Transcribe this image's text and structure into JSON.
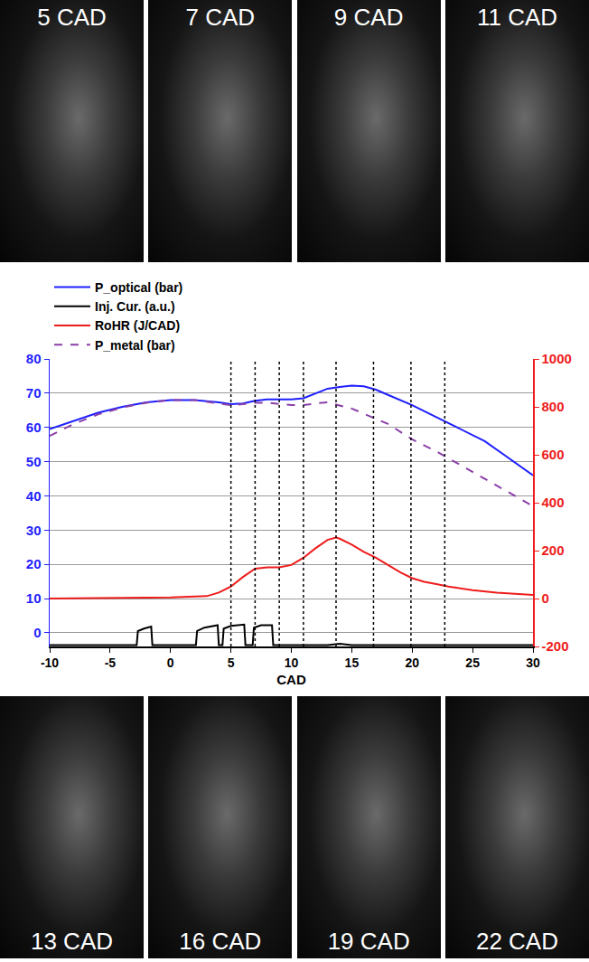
{
  "chart_data": {
    "type": "line",
    "x_label": "CAD",
    "xlim": [
      -10,
      30
    ],
    "xticks": [
      -10,
      -5,
      0,
      5,
      10,
      15,
      20,
      25,
      30
    ],
    "ylim": [
      -4,
      80
    ],
    "yticks": [
      0,
      10,
      20,
      30,
      40,
      50,
      60,
      70,
      80
    ],
    "y2lim": [
      -200,
      1000
    ],
    "y2ticks": [
      -200,
      0,
      200,
      400,
      600,
      800,
      1000
    ],
    "grid": true,
    "legend": "upper left",
    "series": [
      {
        "name": "P_optical (bar)",
        "color": "#1f1fff",
        "line_style": "solid",
        "x": [
          -10,
          -8,
          -6,
          -4,
          -2,
          0,
          2,
          4,
          5,
          6,
          7,
          8,
          9,
          10,
          11,
          12,
          13,
          14,
          15,
          16,
          17,
          18,
          20,
          22,
          24,
          26,
          28,
          30
        ],
        "values": [
          59.5,
          62,
          64.3,
          66,
          67.3,
          68,
          68,
          67.3,
          66.8,
          67,
          67.8,
          68.2,
          68.2,
          68.2,
          68.5,
          70,
          71.3,
          71.8,
          72.2,
          72,
          71,
          69.5,
          66.5,
          63,
          59.5,
          56,
          51,
          46
        ]
      },
      {
        "name": "Inj. Cur. (a.u.)",
        "color": "#000000",
        "line_style": "solid",
        "x": [
          -10,
          -2.8,
          -2.7,
          -2.2,
          -1.6,
          -1.5,
          2.1,
          2.2,
          2.8,
          3.9,
          4.0,
          4.3,
          4.4,
          5.0,
          6.1,
          6.2,
          6.8,
          6.9,
          7.5,
          8.4,
          8.5,
          13,
          14,
          15,
          30
        ],
        "values": [
          -3.6,
          -3.6,
          0.5,
          1.2,
          1.8,
          -3.6,
          -3.6,
          0.5,
          1.5,
          2.2,
          -3.6,
          -3.6,
          1.2,
          2.0,
          2.4,
          -3.6,
          -3.6,
          1.5,
          2.2,
          2.2,
          -3.6,
          -3.6,
          -3.2,
          -3.6,
          -3.6
        ]
      },
      {
        "name": "RoHR (J/CAD)",
        "color": "#ee1c1c",
        "line_style": "solid",
        "axis": "y2",
        "x": [
          -10,
          -5,
          0,
          3,
          4,
          5,
          6,
          7,
          8,
          9,
          10,
          11,
          12,
          13,
          13.7,
          14,
          15,
          16,
          17,
          18,
          19,
          20,
          21,
          22,
          23,
          25,
          27,
          30
        ],
        "values": [
          0,
          2,
          5,
          10,
          25,
          50,
          90,
          125,
          130,
          130,
          140,
          170,
          210,
          245,
          255,
          250,
          225,
          195,
          170,
          140,
          110,
          85,
          70,
          60,
          50,
          35,
          25,
          15
        ]
      },
      {
        "name": "P_metal (bar)",
        "color": "#8a3fa8",
        "line_style": "dashed",
        "x": [
          -10,
          -8,
          -6,
          -4,
          -2,
          0,
          2,
          4,
          5,
          6,
          7,
          8,
          9,
          10,
          11,
          12,
          13,
          14,
          15,
          16,
          18,
          20,
          22,
          24,
          26,
          28,
          30
        ],
        "values": [
          57.5,
          61,
          63.8,
          65.8,
          67.2,
          68,
          68,
          67,
          66.5,
          66.8,
          67.2,
          67.2,
          66.8,
          66.5,
          66.5,
          67,
          67.3,
          66.5,
          65.5,
          64,
          61,
          56.5,
          53,
          49,
          45,
          41,
          37
        ]
      }
    ],
    "reference_lines": {
      "x": [
        5,
        7,
        9,
        11,
        13.7,
        16.8,
        19.9,
        22.7
      ],
      "color": "#000000",
      "line_style": "dotted"
    }
  },
  "image_panels": {
    "top": [
      "5 CAD",
      "7 CAD",
      "9 CAD",
      "11 CAD"
    ],
    "bottom": [
      "13 CAD",
      "16 CAD",
      "19 CAD",
      "22 CAD"
    ]
  }
}
